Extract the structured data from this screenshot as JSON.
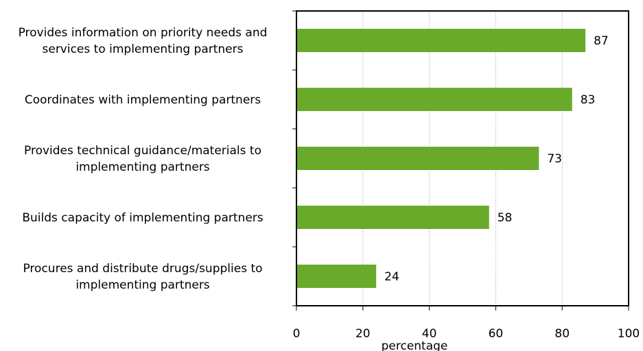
{
  "chart_data": {
    "type": "bar",
    "orientation": "horizontal",
    "categories": [
      [
        "Provides information on priority needs and",
        "services to implementing partners"
      ],
      [
        "Coordinates with implementing partners"
      ],
      [
        "Provides technical guidance/materials to",
        "implementing partners"
      ],
      [
        "Builds capacity of implementing partners"
      ],
      [
        "Procures and distribute drugs/supplies to",
        "implementing partners"
      ]
    ],
    "values": [
      87,
      83,
      73,
      58,
      24
    ],
    "value_labels": [
      "87",
      "83",
      "73",
      "58",
      "24"
    ],
    "xlabel": "percentage",
    "xlim": [
      0,
      100
    ],
    "xticks": [
      0,
      20,
      40,
      60,
      80,
      100
    ],
    "xtick_labels": [
      "0",
      "20",
      "40",
      "60",
      "80",
      "100"
    ],
    "grid": "vertical dotted",
    "legend": "none",
    "bar_color": "#6aaa2a"
  }
}
